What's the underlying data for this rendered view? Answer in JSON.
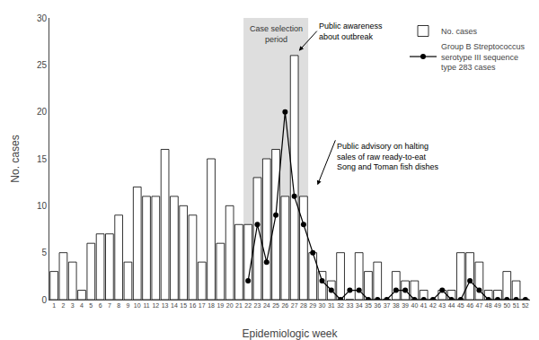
{
  "chart_data": {
    "type": "bar",
    "xlabel": "Epidemiologic week",
    "ylabel": "No. cases",
    "x": [
      1,
      2,
      3,
      4,
      5,
      6,
      7,
      8,
      9,
      10,
      11,
      12,
      13,
      14,
      15,
      16,
      17,
      18,
      19,
      20,
      21,
      22,
      23,
      24,
      25,
      26,
      27,
      28,
      29,
      30,
      31,
      32,
      33,
      34,
      35,
      36,
      37,
      38,
      39,
      40,
      41,
      42,
      43,
      44,
      45,
      46,
      47,
      48,
      49,
      50,
      51,
      52
    ],
    "series": [
      {
        "name": "No. cases",
        "type": "bar",
        "color": "#ffffff",
        "values": [
          3,
          5,
          4,
          1,
          6,
          7,
          7,
          9,
          4,
          12,
          11,
          11,
          16,
          11,
          10,
          9,
          4,
          15,
          6,
          10,
          8,
          8,
          13,
          15,
          16,
          11,
          26,
          11,
          5,
          3,
          2,
          5,
          0,
          5,
          3,
          4,
          0,
          3,
          2,
          2,
          1,
          0,
          1,
          1,
          5,
          5,
          4,
          1,
          1,
          3,
          2,
          0
        ]
      },
      {
        "name": "Group B Streptococcus\nserotype III sequence\ntype 283 cases",
        "type": "line",
        "color": "#000000",
        "marker": "circle",
        "values": [
          null,
          null,
          null,
          null,
          null,
          null,
          null,
          null,
          null,
          null,
          null,
          null,
          null,
          null,
          null,
          null,
          null,
          null,
          null,
          null,
          null,
          2,
          8,
          4,
          9,
          20,
          11,
          8,
          5,
          2,
          1,
          0,
          1,
          1,
          0,
          0,
          0,
          1,
          1,
          0,
          0,
          0,
          1,
          0,
          0,
          2,
          1,
          0,
          0,
          0,
          0,
          0
        ]
      }
    ],
    "xlim": [
      0.5,
      52.5
    ],
    "xticks": [
      1,
      2,
      3,
      4,
      5,
      6,
      7,
      8,
      9,
      10,
      11,
      12,
      13,
      14,
      15,
      16,
      17,
      18,
      19,
      20,
      21,
      22,
      23,
      24,
      25,
      26,
      27,
      28,
      29,
      30,
      31,
      32,
      33,
      34,
      35,
      36,
      37,
      38,
      39,
      40,
      41,
      42,
      43,
      44,
      45,
      46,
      47,
      48,
      49,
      50,
      51,
      52
    ],
    "ylim": [
      0,
      30
    ],
    "yticks": [
      0,
      5,
      10,
      15,
      20,
      25,
      30
    ],
    "highlight": {
      "from": 22,
      "to": 28,
      "text": "Case selection\nperiod",
      "color": "#d0d0d0"
    },
    "annotations": [
      {
        "text": "Public awareness\nabout outbreak",
        "x": 27.5,
        "y": 26.5
      },
      {
        "text": "Public advisory on halting\nsales of raw ready-to-eat\nSong and Toman fish dishes",
        "x": 29.5,
        "y": 12.2
      }
    ],
    "grid": false,
    "legend": "upper right"
  }
}
